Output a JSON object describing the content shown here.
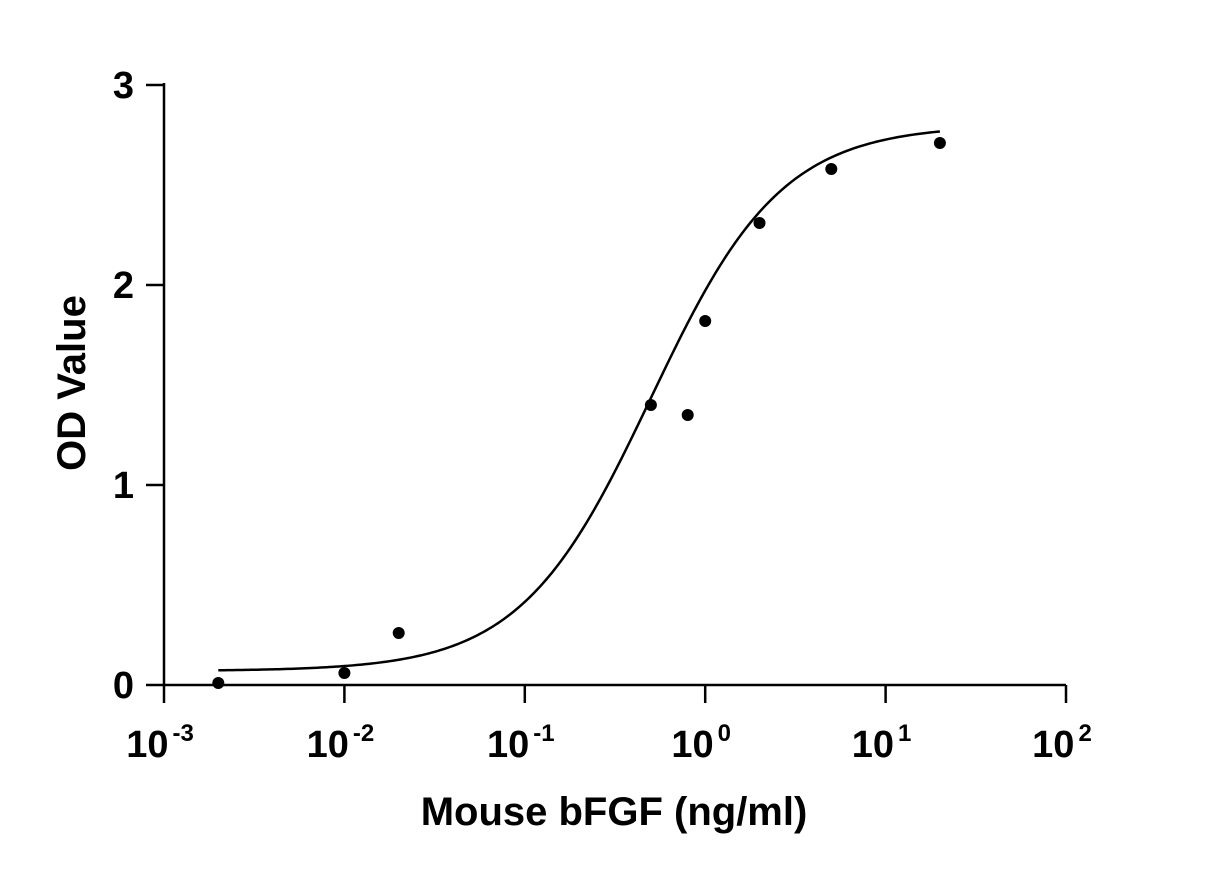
{
  "chart_data": {
    "type": "scatter",
    "xlabel": "Mouse bFGF (ng/ml)",
    "ylabel": "OD Value",
    "x_scale": "log",
    "xlim": [
      0.001,
      100
    ],
    "ylim": [
      0,
      3
    ],
    "x_ticks": [
      {
        "base": "10",
        "exp": "-3",
        "value": 0.001
      },
      {
        "base": "10",
        "exp": "-2",
        "value": 0.01
      },
      {
        "base": "10",
        "exp": "-1",
        "value": 0.1
      },
      {
        "base": "10",
        "exp": "0",
        "value": 1
      },
      {
        "base": "10",
        "exp": "1",
        "value": 10
      },
      {
        "base": "10",
        "exp": "2",
        "value": 100
      }
    ],
    "y_ticks": [
      "0",
      "1",
      "2",
      "3"
    ],
    "grid": false,
    "series": [
      {
        "marker": "filled-circle",
        "color": "#000000",
        "points": [
          {
            "x": 0.002,
            "y": 0.01
          },
          {
            "x": 0.01,
            "y": 0.06
          },
          {
            "x": 0.02,
            "y": 0.26
          },
          {
            "x": 0.5,
            "y": 1.4
          },
          {
            "x": 0.8,
            "y": 1.35
          },
          {
            "x": 1,
            "y": 1.82
          },
          {
            "x": 2,
            "y": 2.31
          },
          {
            "x": 5,
            "y": 2.58
          },
          {
            "x": 20,
            "y": 2.71
          }
        ]
      }
    ],
    "fit_curve": {
      "model": "4PL",
      "bottom": 0.07,
      "top": 2.8,
      "ec50": 0.5,
      "hill": 1.2,
      "x_range": [
        0.002,
        20
      ],
      "color": "#000000"
    }
  }
}
